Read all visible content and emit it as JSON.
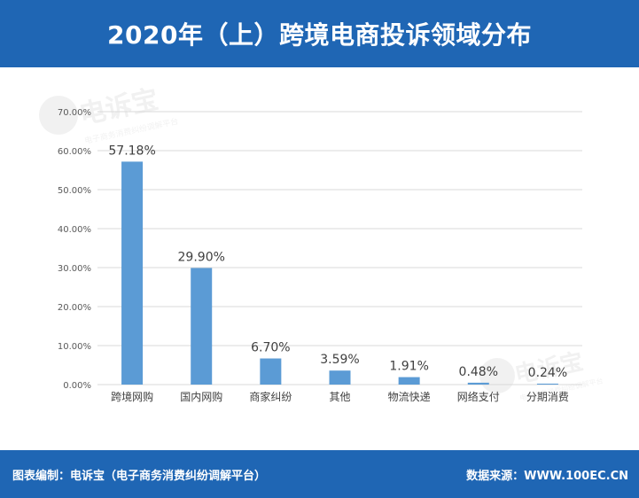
{
  "header": {
    "title": "2020年（上）跨境电商投诉领域分布"
  },
  "footer": {
    "left": "图表编制：电诉宝（电子商务消费纠纷调解平台）",
    "right": "数据来源：WWW.100EC.CN"
  },
  "watermark": {
    "brand": "电诉宝",
    "subtitle": "电子商务消费纠纷调解平台"
  },
  "colors": {
    "header_bg": "#1f66b4",
    "bar": "#5b9bd5",
    "grid": "#d9d9d9"
  },
  "chart_data": {
    "type": "bar",
    "categories": [
      "跨境网购",
      "国内网购",
      "商家纠纷",
      "其他",
      "物流快递",
      "网络支付",
      "分期消费"
    ],
    "values": [
      57.18,
      29.9,
      6.7,
      3.59,
      1.91,
      0.48,
      0.24
    ],
    "value_labels": [
      "57.18%",
      "29.90%",
      "6.70%",
      "3.59%",
      "1.91%",
      "0.48%",
      "0.24%"
    ],
    "ylim": [
      0,
      70
    ],
    "yticks": [
      0,
      10,
      20,
      30,
      40,
      50,
      60,
      70
    ],
    "ytick_labels": [
      "0.00%",
      "10.00%",
      "20.00%",
      "30.00%",
      "40.00%",
      "50.00%",
      "60.00%",
      "70.00%"
    ],
    "grid": true,
    "legend": "none"
  }
}
